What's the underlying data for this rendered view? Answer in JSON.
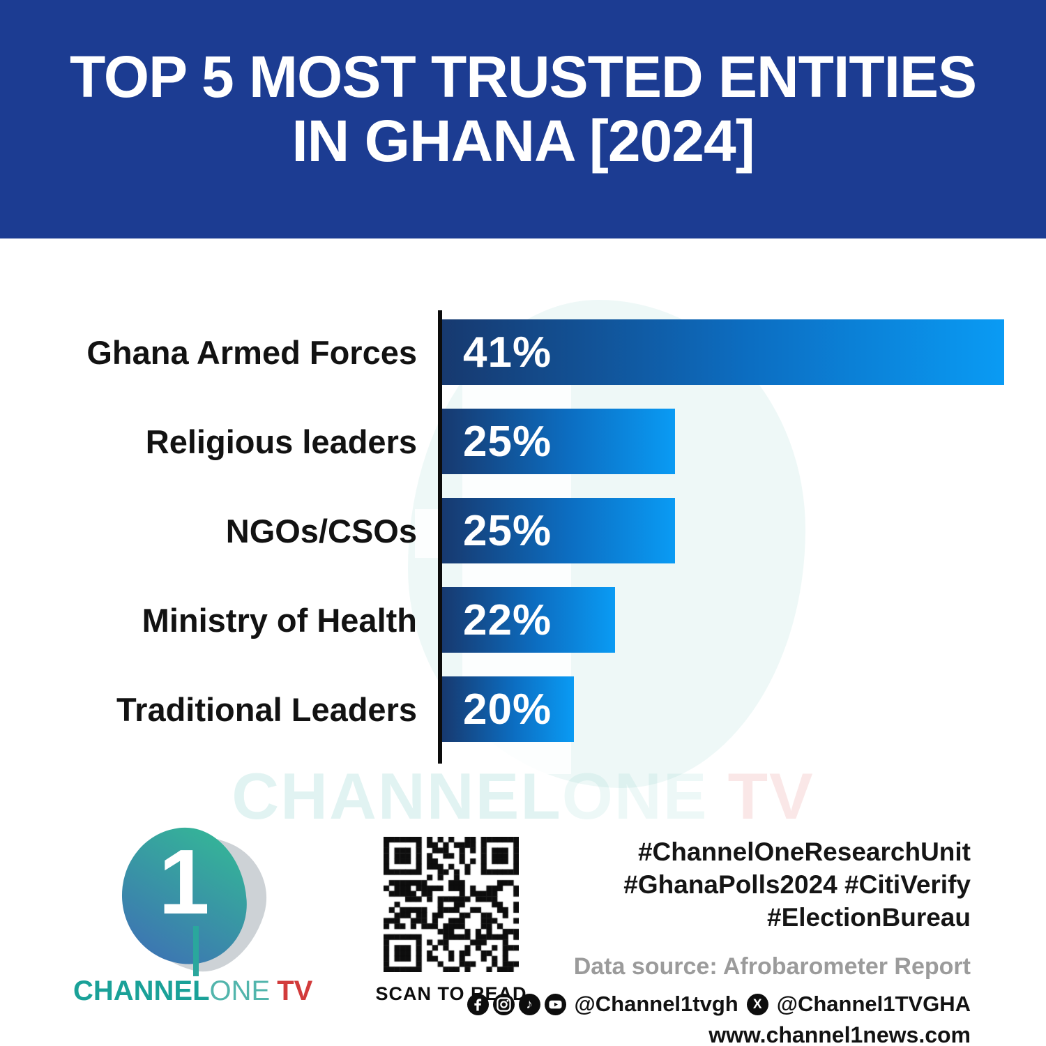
{
  "header": {
    "title_line1": "TOP 5 MOST TRUSTED ENTITIES",
    "title_line2": "IN GHANA [2024]"
  },
  "chart_data": {
    "type": "bar",
    "orientation": "horizontal",
    "title": "TOP 5 MOST TRUSTED ENTITIES IN GHANA [2024]",
    "categories": [
      "Ghana Armed Forces",
      "Religious leaders",
      "NGOs/CSOs",
      "Ministry of Health",
      "Traditional Leaders"
    ],
    "values": [
      41,
      25,
      25,
      22,
      20
    ],
    "value_labels": [
      "41%",
      "25%",
      "25%",
      "22%",
      "20%"
    ],
    "unit": "%",
    "grid": false,
    "legend": false,
    "bar_gradient": [
      "#17396f",
      "#0a9bf4"
    ],
    "axis_color": "#0c0c0c"
  },
  "watermark_text": {
    "part1": "CHANNEL",
    "part2": "ONE",
    "part3": " TV"
  },
  "footer": {
    "logo": {
      "numeral": "1",
      "brand_bold": "CHANNEL",
      "brand_light": "ONE",
      "brand_accent": "TV"
    },
    "qr_caption": "SCAN TO READ",
    "hashtags": [
      "#ChannelOneResearchUnit",
      "#GhanaPolls2024 #CitiVerify",
      "#ElectionBureau"
    ],
    "data_source": "Data source: Afrobarometer Report",
    "social": {
      "icons": [
        "facebook-icon",
        "instagram-icon",
        "tiktok-icon",
        "youtube-icon"
      ],
      "handle_main": "@Channel1tvgh",
      "x_icon": "x-twitter-icon",
      "handle_x": "@Channel1TVGHA",
      "website": "www.channel1news.com"
    }
  },
  "colors": {
    "banner_blue": "#1c3c92",
    "bar_dark": "#17396f",
    "bar_bright": "#0a9bf4",
    "logo_teal": "#1aa198",
    "logo_teal_light": "#52b5ac",
    "logo_red": "#d23b3b",
    "text_black": "#121212",
    "muted_gray": "#9b9b9b"
  }
}
